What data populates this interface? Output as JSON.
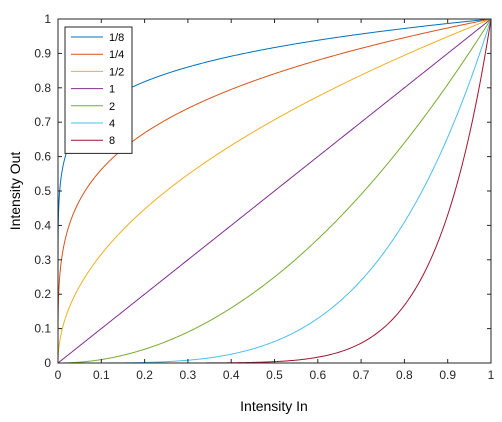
{
  "chart_data": {
    "type": "line",
    "xlabel": "Intensity In",
    "ylabel": "Intensity Out",
    "xlim": [
      0,
      1
    ],
    "ylim": [
      0,
      1
    ],
    "x_ticks": [
      "0",
      "0.1",
      "0.2",
      "0.3",
      "0.4",
      "0.5",
      "0.6",
      "0.7",
      "0.8",
      "0.9",
      "1"
    ],
    "y_ticks": [
      "0",
      "0.1",
      "0.2",
      "0.3",
      "0.4",
      "0.5",
      "0.6",
      "0.7",
      "0.8",
      "0.9",
      "1"
    ],
    "grid": false,
    "legend_position": "top-left",
    "function": "y = x^gamma",
    "x": [
      0,
      0.01,
      0.02,
      0.05,
      0.1,
      0.2,
      0.3,
      0.4,
      0.5,
      0.6,
      0.7,
      0.8,
      0.9,
      1
    ],
    "series": [
      {
        "name": "1/8",
        "gamma": 0.125,
        "color": "#0072BD",
        "values": [
          0,
          0.562,
          0.613,
          0.688,
          0.75,
          0.818,
          0.86,
          0.892,
          0.917,
          0.938,
          0.956,
          0.972,
          0.987,
          1
        ]
      },
      {
        "name": "1/4",
        "gamma": 0.25,
        "color": "#D95319",
        "values": [
          0,
          0.316,
          0.376,
          0.473,
          0.562,
          0.669,
          0.74,
          0.795,
          0.841,
          0.88,
          0.915,
          0.946,
          0.974,
          1
        ]
      },
      {
        "name": "1/2",
        "gamma": 0.5,
        "color": "#EDB120",
        "values": [
          0,
          0.1,
          0.141,
          0.224,
          0.316,
          0.447,
          0.548,
          0.632,
          0.707,
          0.775,
          0.837,
          0.894,
          0.949,
          1
        ]
      },
      {
        "name": "1",
        "gamma": 1,
        "color": "#7E2F8E",
        "values": [
          0,
          0.01,
          0.02,
          0.05,
          0.1,
          0.2,
          0.3,
          0.4,
          0.5,
          0.6,
          0.7,
          0.8,
          0.9,
          1
        ]
      },
      {
        "name": "2",
        "gamma": 2,
        "color": "#77AC30",
        "values": [
          0,
          0.0001,
          0.0004,
          0.0025,
          0.01,
          0.04,
          0.09,
          0.16,
          0.25,
          0.36,
          0.49,
          0.64,
          0.81,
          1
        ]
      },
      {
        "name": "4",
        "gamma": 4,
        "color": "#4DBEEE",
        "values": [
          0,
          0,
          0,
          1e-05,
          0.0001,
          0.0016,
          0.0081,
          0.0256,
          0.0625,
          0.1296,
          0.2401,
          0.4096,
          0.6561,
          1
        ]
      },
      {
        "name": "8",
        "gamma": 8,
        "color": "#A2142F",
        "values": [
          0,
          0,
          0,
          0,
          0,
          3e-06,
          7e-05,
          0.00066,
          0.0039,
          0.0168,
          0.0576,
          0.1678,
          0.4305,
          1
        ]
      }
    ]
  }
}
